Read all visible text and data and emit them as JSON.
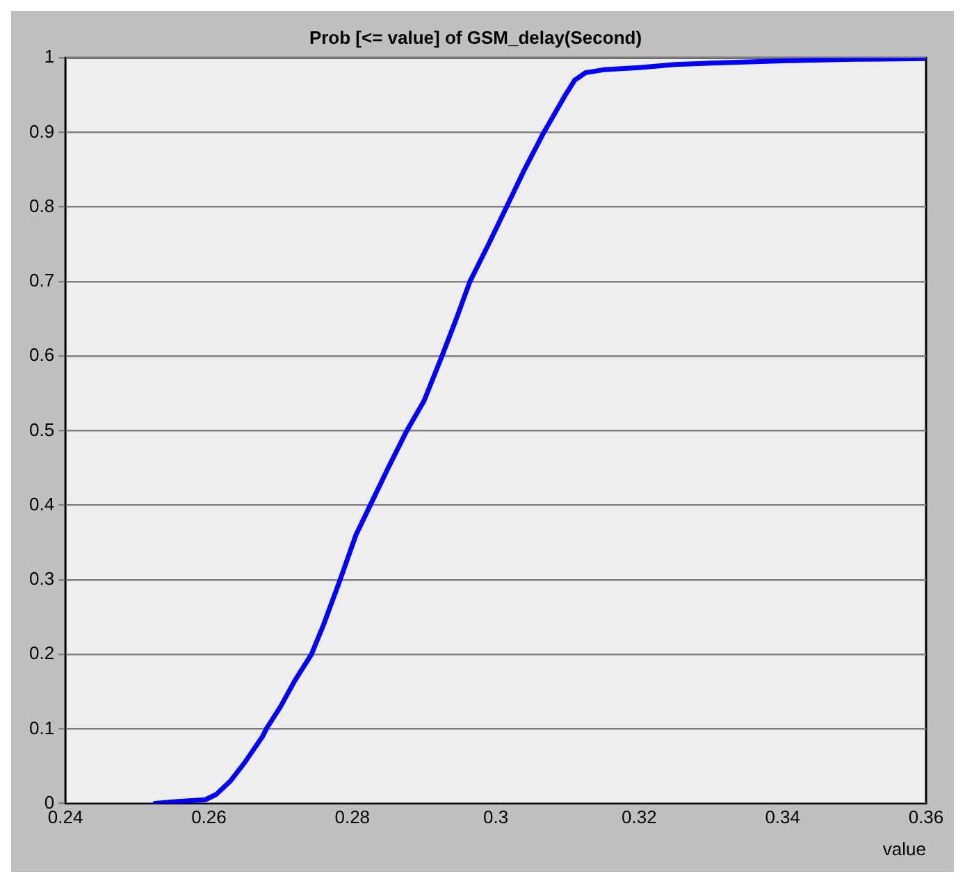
{
  "chart_data": {
    "type": "line",
    "title": "Prob [<= value] of GSM_delay(Second)",
    "xlabel": "value",
    "x": [
      0.2525,
      0.256,
      0.2595,
      0.261,
      0.263,
      0.265,
      0.2675,
      0.268,
      0.27,
      0.272,
      0.2743,
      0.276,
      0.2783,
      0.2805,
      0.2825,
      0.285,
      0.2876,
      0.29,
      0.2925,
      0.2945,
      0.2964,
      0.299,
      0.3015,
      0.304,
      0.3067,
      0.3097,
      0.311,
      0.3125,
      0.315,
      0.32,
      0.325,
      0.33,
      0.34,
      0.35,
      0.36
    ],
    "series": [
      {
        "color": "#0000ff",
        "values": [
          0,
          0.003,
          0.005,
          0.012,
          0.03,
          0.055,
          0.09,
          0.1,
          0.13,
          0.165,
          0.2,
          0.24,
          0.3,
          0.36,
          0.4,
          0.45,
          0.5,
          0.54,
          0.6,
          0.65,
          0.7,
          0.75,
          0.8,
          0.85,
          0.9,
          0.95,
          0.97,
          0.98,
          0.984,
          0.987,
          0.991,
          0.993,
          0.996,
          0.998,
          0.999
        ]
      }
    ],
    "xlim": [
      0.24,
      0.36
    ],
    "xticks": [
      0.24,
      0.26,
      0.28,
      0.3,
      0.32,
      0.34,
      0.36
    ],
    "ylim": [
      0,
      1
    ],
    "yticks": [
      0,
      0.1,
      0.2,
      0.3,
      0.4,
      0.5,
      0.6,
      0.7,
      0.8,
      0.9,
      1
    ],
    "grid": "y",
    "legend": false,
    "marker": "none",
    "line_style": "solid"
  }
}
